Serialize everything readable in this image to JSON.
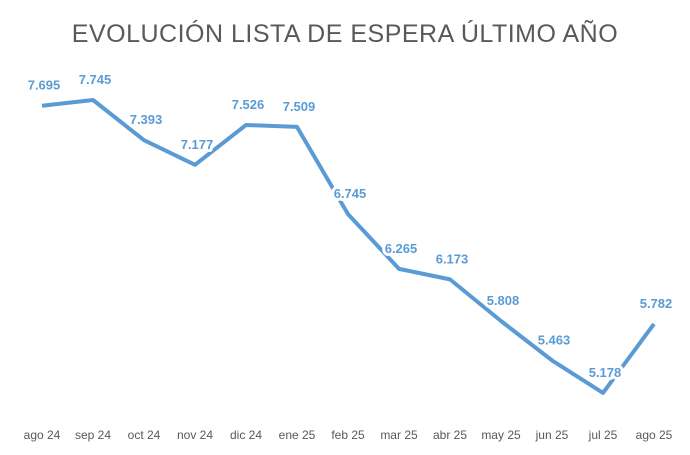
{
  "chart_data": {
    "type": "line",
    "title": "EVOLUCIÓN LISTA DE ESPERA ÚLTIMO AÑO",
    "xlabel": "",
    "ylabel": "",
    "categories": [
      "ago 24",
      "sep 24",
      "oct 24",
      "nov 24",
      "dic 24",
      "ene 25",
      "feb 25",
      "mar 25",
      "abr 25",
      "may 25",
      "jun 25",
      "jul 25",
      "ago 25"
    ],
    "series": [
      {
        "name": "Lista de espera",
        "values": [
          7695,
          7745,
          7393,
          7177,
          7526,
          7509,
          6745,
          6265,
          6173,
          5808,
          5463,
          5178,
          5782
        ],
        "labels": [
          "7.695",
          "7.745",
          "7.393",
          "7.177",
          "7.526",
          "7.509",
          "6.745",
          "6.265",
          "6.173",
          "5.808",
          "5.463",
          "5.178",
          "5.782"
        ],
        "color": "#5b9bd5"
      }
    ],
    "grid": false,
    "legend": "none"
  }
}
